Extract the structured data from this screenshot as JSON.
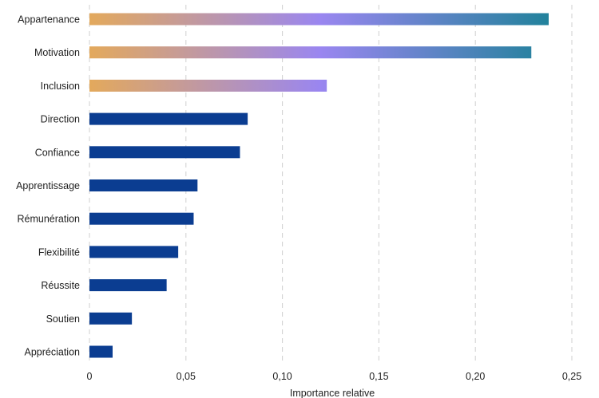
{
  "chart_data": {
    "type": "bar",
    "orientation": "horizontal",
    "title": "",
    "xlabel": "Importance relative",
    "ylabel": "",
    "xlim": [
      0,
      0.25
    ],
    "x_ticks": [
      0,
      0.05,
      0.1,
      0.15,
      0.2,
      0.25
    ],
    "x_tick_labels": [
      "0",
      "0,05",
      "0,10",
      "0,15",
      "0,20",
      "0,25"
    ],
    "grid": "vertical dashed",
    "categories": [
      "Appartenance",
      "Motivation",
      "Inclusion",
      "Direction",
      "Confiance",
      "Apprentissage",
      "Rémunération",
      "Flexibilité",
      "Réussite",
      "Soutien",
      "Appréciation"
    ],
    "values": [
      0.238,
      0.229,
      0.123,
      0.082,
      0.078,
      0.056,
      0.054,
      0.046,
      0.04,
      0.022,
      0.012
    ],
    "highlight_count": 3,
    "colors": {
      "bar": "#0b3d91",
      "gradient_start": "#e3a95c",
      "gradient_mid": "#9a86f0",
      "gradient_end": "#21829b",
      "grid": "#cfcfcf",
      "text": "#1f1f1f"
    }
  }
}
